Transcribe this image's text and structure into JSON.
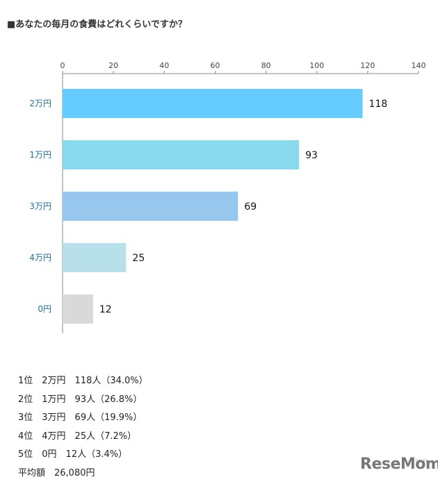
{
  "title": "■あなたの毎月の食費はどれくらいですか？",
  "chart_data": {
    "type": "bar",
    "orientation": "horizontal",
    "categories": [
      "2万円",
      "1万円",
      "3万円",
      "4万円",
      "0円"
    ],
    "values": [
      118,
      93,
      69,
      25,
      12
    ],
    "colors": [
      "#66ccff",
      "#88d9ec",
      "#98c7ee",
      "#b8e0ea",
      "#d9d9d9"
    ],
    "xlim": [
      0,
      140
    ],
    "xticks": [
      0,
      20,
      40,
      60,
      80,
      100,
      120,
      140
    ],
    "xaxis_position": "top",
    "grid": false,
    "legend": "none"
  },
  "summary": [
    "1位　2万円　118人（34.0%）",
    "2位　1万円　93人（26.8%）",
    "3位　3万円　69人（19.9%）",
    "4位　4万円　25人（7.2%）",
    "5位　0円　12人（3.4%）",
    "平均額　26,080円"
  ],
  "logo": {
    "text": "ReseMom",
    "sub": "リセマム"
  }
}
